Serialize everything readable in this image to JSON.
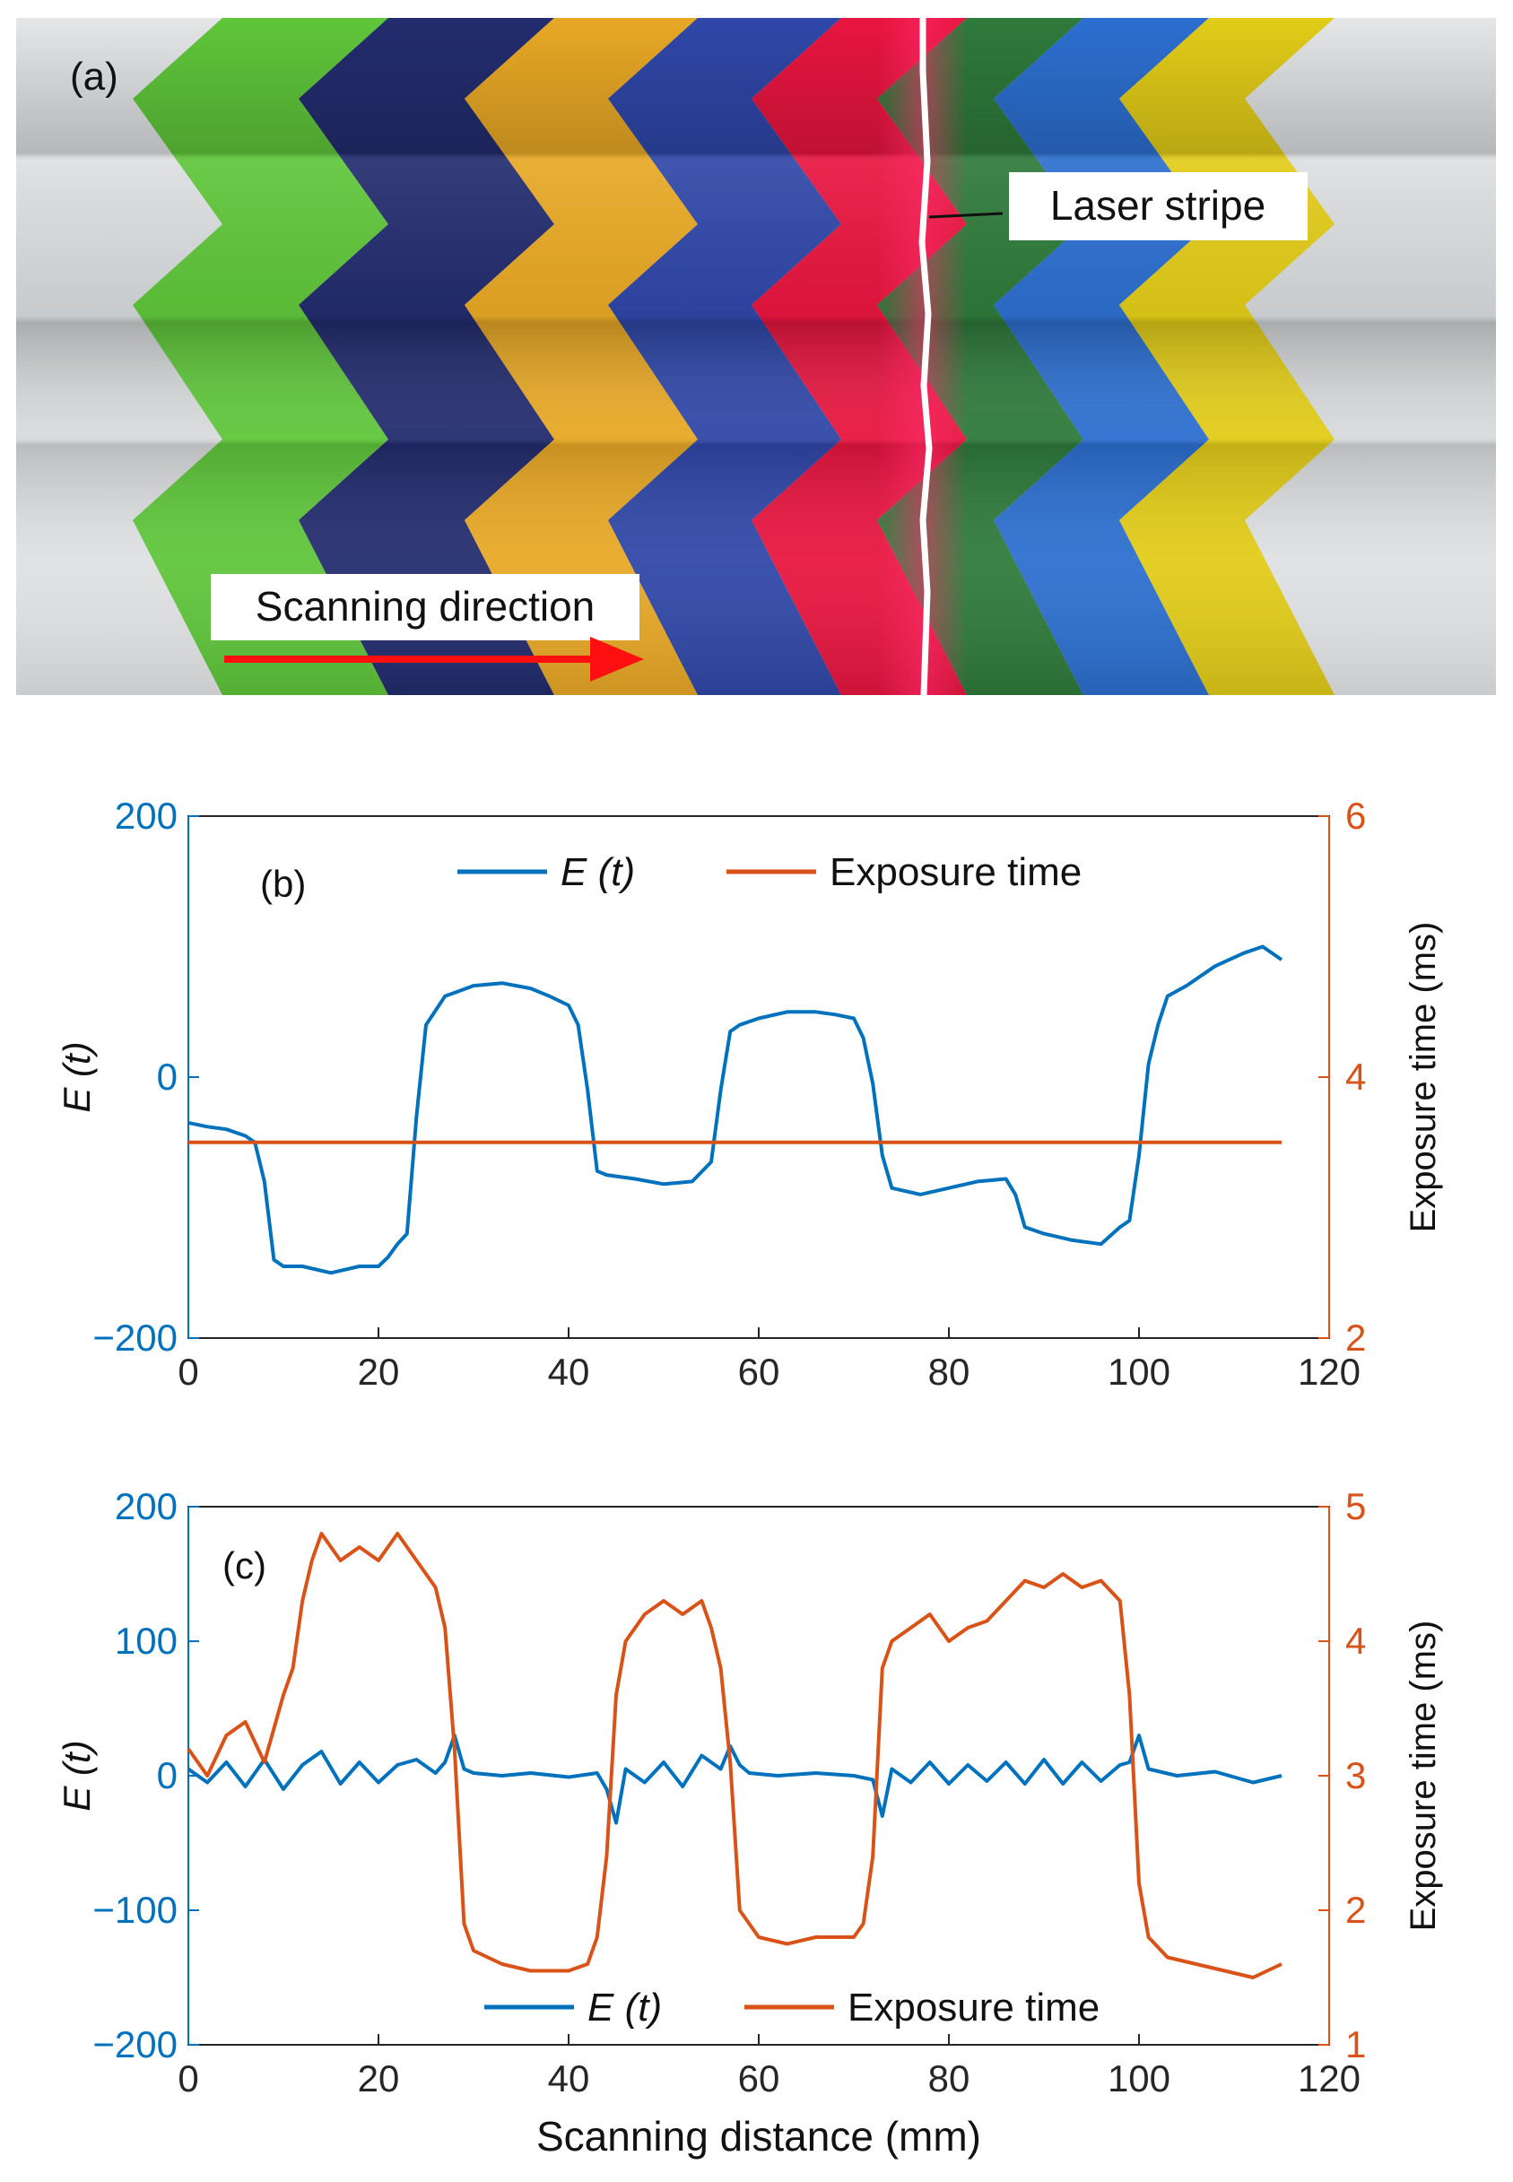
{
  "photo": {
    "panel_label": "(a)",
    "laser_label": "Laser stripe",
    "scan_label": "Scanning direction",
    "stripe_colors": [
      "#5fc63a",
      "#232c6e",
      "#e8a825",
      "#2f47a8",
      "#e8153f",
      "#2e7a3b",
      "#2c6fd0",
      "#e2cc18"
    ],
    "laser_color": "#ffffff",
    "arrow_color": "#ff1010"
  },
  "charts": [
    {
      "panel_label": "(b)",
      "type": "line",
      "xlabel": "",
      "ylabel_left": "E (t)",
      "ylabel_right": "Exposure time (ms)",
      "xlim": [
        0,
        120
      ],
      "ylim_left": [
        -200,
        200
      ],
      "ylim_right": [
        2,
        6
      ],
      "xticks": [
        "0",
        "20",
        "40",
        "60",
        "80",
        "100",
        "120"
      ],
      "yticks_left": [
        "−200",
        "0",
        "200"
      ],
      "yticks_right": [
        "2",
        "4",
        "6"
      ],
      "legend": {
        "position": "top-center",
        "entries": [
          "E (t)",
          "Exposure time"
        ]
      },
      "colors": {
        "left": "#0072BD",
        "right": "#D95319"
      },
      "series": [
        {
          "name": "E (t)",
          "axis": "left",
          "x": [
            0,
            2,
            4,
            6,
            7,
            8,
            9,
            10,
            12,
            15,
            18,
            20,
            21,
            22,
            23,
            24,
            25,
            27,
            30,
            33,
            36,
            38,
            40,
            41,
            42,
            43,
            44,
            47,
            50,
            53,
            55,
            56,
            57,
            58,
            60,
            63,
            66,
            68,
            70,
            71,
            72,
            73,
            74,
            77,
            80,
            83,
            86,
            87,
            88,
            90,
            93,
            96,
            98,
            99,
            100,
            101,
            102,
            103,
            105,
            108,
            111,
            113,
            115
          ],
          "y": [
            -35,
            -38,
            -40,
            -45,
            -50,
            -80,
            -140,
            -145,
            -145,
            -150,
            -145,
            -145,
            -138,
            -128,
            -120,
            -30,
            40,
            62,
            70,
            72,
            68,
            62,
            55,
            40,
            -10,
            -72,
            -75,
            -78,
            -82,
            -80,
            -65,
            -10,
            35,
            40,
            45,
            50,
            50,
            48,
            45,
            30,
            -5,
            -60,
            -85,
            -90,
            -85,
            -80,
            -78,
            -90,
            -115,
            -120,
            -125,
            -128,
            -115,
            -110,
            -60,
            10,
            40,
            62,
            70,
            85,
            95,
            100,
            90
          ]
        },
        {
          "name": "Exposure time",
          "axis": "right",
          "x": [
            0,
            115
          ],
          "y": [
            3.5,
            3.5
          ]
        }
      ]
    },
    {
      "panel_label": "(c)",
      "type": "line",
      "xlabel": "Scanning distance (mm)",
      "ylabel_left": "E (t)",
      "ylabel_right": "Exposure time (ms)",
      "xlim": [
        0,
        120
      ],
      "ylim_left": [
        -200,
        200
      ],
      "ylim_right": [
        1,
        5
      ],
      "xticks": [
        "0",
        "20",
        "40",
        "60",
        "80",
        "100",
        "120"
      ],
      "yticks_left": [
        "−200",
        "−100",
        "0",
        "100",
        "200"
      ],
      "yticks_right": [
        "1",
        "2",
        "3",
        "4",
        "5"
      ],
      "legend": {
        "position": "bottom-center",
        "entries": [
          "E (t)",
          "Exposure time"
        ]
      },
      "colors": {
        "left": "#0072BD",
        "right": "#D95319"
      },
      "series": [
        {
          "name": "E (t)",
          "axis": "left",
          "x": [
            0,
            2,
            4,
            6,
            8,
            10,
            12,
            14,
            16,
            18,
            20,
            22,
            24,
            26,
            27,
            28,
            29,
            30,
            33,
            36,
            40,
            43,
            44,
            45,
            46,
            48,
            50,
            52,
            54,
            56,
            57,
            58,
            59,
            62,
            66,
            70,
            72,
            73,
            74,
            76,
            78,
            80,
            82,
            84,
            86,
            88,
            90,
            92,
            94,
            96,
            98,
            99,
            100,
            101,
            104,
            108,
            112,
            115
          ],
          "y": [
            5,
            -5,
            10,
            -8,
            12,
            -10,
            8,
            18,
            -6,
            10,
            -5,
            8,
            12,
            2,
            10,
            30,
            5,
            2,
            0,
            2,
            -1,
            2,
            -10,
            -35,
            5,
            -5,
            10,
            -8,
            15,
            5,
            22,
            8,
            2,
            0,
            2,
            0,
            -3,
            -30,
            5,
            -5,
            10,
            -6,
            8,
            -4,
            10,
            -6,
            12,
            -6,
            10,
            -4,
            8,
            10,
            30,
            5,
            0,
            3,
            -5,
            0
          ]
        },
        {
          "name": "Exposure time",
          "axis": "right",
          "x": [
            0,
            2,
            4,
            6,
            8,
            10,
            11,
            12,
            13,
            14,
            16,
            18,
            20,
            22,
            24,
            26,
            27,
            28,
            29,
            30,
            33,
            36,
            40,
            42,
            43,
            44,
            45,
            46,
            48,
            50,
            52,
            54,
            55,
            56,
            57,
            58,
            60,
            63,
            66,
            70,
            71,
            72,
            73,
            74,
            76,
            78,
            80,
            82,
            84,
            86,
            88,
            90,
            92,
            94,
            96,
            98,
            99,
            100,
            101,
            103,
            106,
            109,
            112,
            115
          ],
          "y": [
            3.2,
            3.0,
            3.3,
            3.4,
            3.1,
            3.6,
            3.8,
            4.3,
            4.6,
            4.8,
            4.6,
            4.7,
            4.6,
            4.8,
            4.6,
            4.4,
            4.1,
            3.2,
            1.9,
            1.7,
            1.6,
            1.55,
            1.55,
            1.6,
            1.8,
            2.4,
            3.6,
            4.0,
            4.2,
            4.3,
            4.2,
            4.3,
            4.1,
            3.8,
            3.1,
            2.0,
            1.8,
            1.75,
            1.8,
            1.8,
            1.9,
            2.4,
            3.8,
            4.0,
            4.1,
            4.2,
            4.0,
            4.1,
            4.15,
            4.3,
            4.45,
            4.4,
            4.5,
            4.4,
            4.45,
            4.3,
            3.6,
            2.2,
            1.8,
            1.65,
            1.6,
            1.55,
            1.5,
            1.6
          ]
        }
      ]
    }
  ]
}
